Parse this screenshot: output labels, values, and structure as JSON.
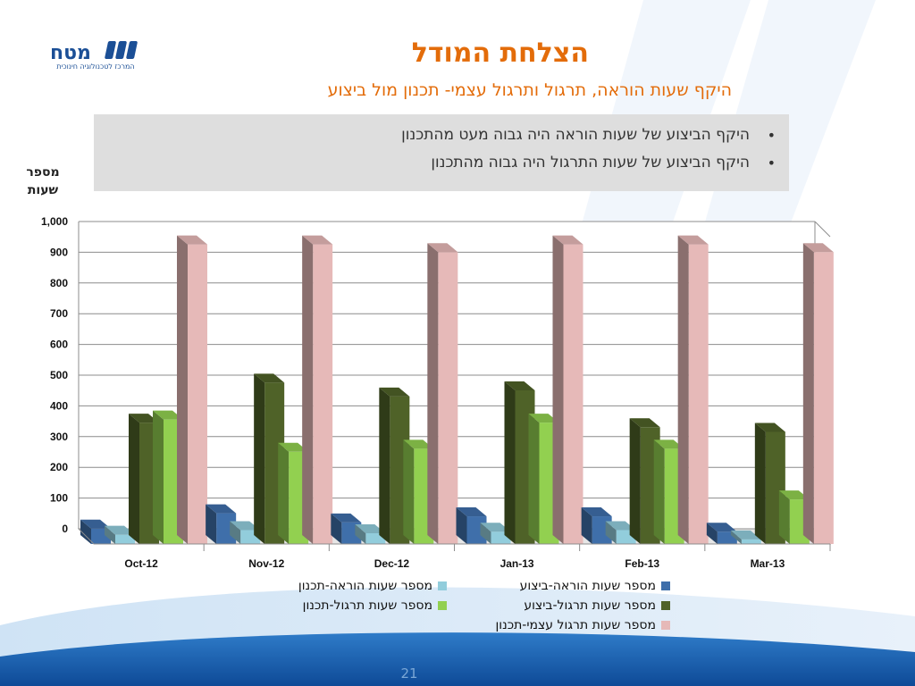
{
  "slide": {
    "title": "הצלחת המודל",
    "subtitle": "היקף שעות הוראה, תרגול ותרגול עצמי- תכנון מול ביצוע",
    "bullets": [
      "היקף הביצוע של שעות הוראה היה גבוה מעט מהתכנון",
      "היקף הביצוע של שעות התרגול היה גבוה מהתכנון"
    ],
    "ylabel_line1": "מספר",
    "ylabel_line2": "שעות",
    "page_number": "21",
    "logo": {
      "text": "מטח",
      "caption": "המרכז לטכנולוגיה חינוכית"
    }
  },
  "chart_data": {
    "type": "bar",
    "categories": [
      "Oct-12",
      "Nov-12",
      "Dec-12",
      "Jan-13",
      "Feb-13",
      "Mar-13"
    ],
    "ylim": [
      0,
      1000
    ],
    "yticks": [
      0,
      100,
      200,
      300,
      400,
      500,
      600,
      700,
      800,
      900,
      1000
    ],
    "ytick_labels": [
      "0",
      "100",
      "200",
      "300",
      "400",
      "500",
      "600",
      "700",
      "800",
      "900",
      "1,000"
    ],
    "grid": true,
    "legend_position": "bottom",
    "series": [
      {
        "name": "מספר שעות הוראה-ביצוע",
        "color": "#3f6faa",
        "values": [
          50,
          100,
          70,
          90,
          90,
          40
        ]
      },
      {
        "name": "מספר שעות הוראה-תכנון",
        "color": "#92cddc",
        "values": [
          30,
          45,
          35,
          40,
          45,
          15
        ]
      },
      {
        "name": "מספר שעות תרגול-ביצוע",
        "color": "#4f6228",
        "values": [
          395,
          525,
          480,
          500,
          380,
          365
        ]
      },
      {
        "name": "מספר שעות תרגול-תכנון",
        "color": "#92d050",
        "values": [
          405,
          300,
          310,
          395,
          310,
          145
        ]
      },
      {
        "name": "מספר שעות תרגול עצמי-תכנון",
        "color": "#e6b9b8",
        "values": [
          975,
          975,
          950,
          975,
          975,
          950
        ]
      }
    ]
  }
}
